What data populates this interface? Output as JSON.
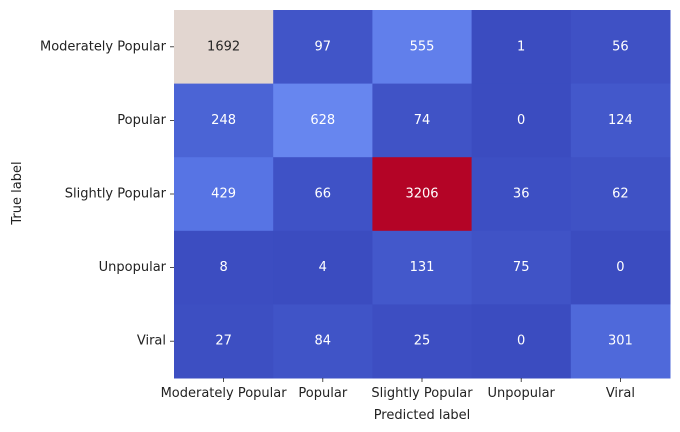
{
  "chart_data": {
    "type": "heatmap",
    "title": "",
    "xlabel": "Predicted label",
    "ylabel": "True label",
    "x_categories": [
      "Moderately Popular",
      "Popular",
      "Slightly Popular",
      "Unpopular",
      "Viral"
    ],
    "y_categories": [
      "Moderately Popular",
      "Popular",
      "Slightly Popular",
      "Unpopular",
      "Viral"
    ],
    "values": [
      [
        1692,
        97,
        555,
        1,
        56
      ],
      [
        248,
        628,
        74,
        0,
        124
      ],
      [
        429,
        66,
        3206,
        36,
        62
      ],
      [
        8,
        4,
        131,
        75,
        0
      ],
      [
        27,
        84,
        25,
        0,
        301
      ]
    ],
    "colormap": "coolwarm",
    "vmin": 0,
    "vmax": 3206,
    "colorbar": false
  }
}
